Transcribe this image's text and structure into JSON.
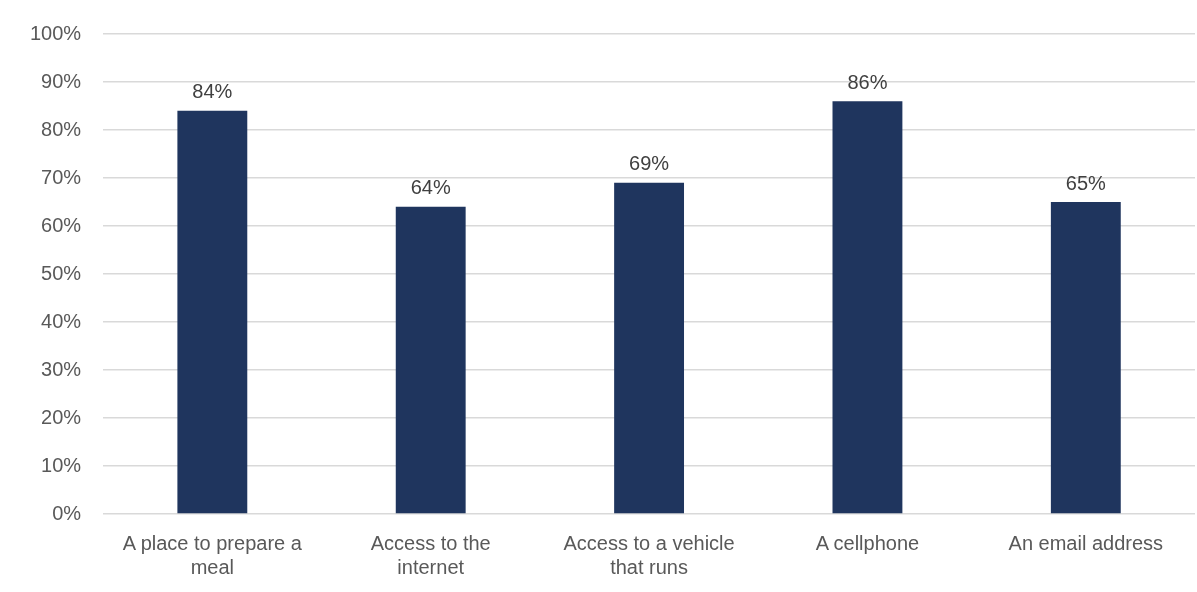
{
  "chart_data": {
    "type": "bar",
    "categories": [
      "A place to prepare a meal",
      "Access to the internet",
      "Access to a vehicle that runs",
      "A cellphone",
      "An email address"
    ],
    "values": [
      84,
      64,
      69,
      86,
      65
    ],
    "value_labels": [
      "84%",
      "64%",
      "69%",
      "86%",
      "65%"
    ],
    "color": "#1f355e",
    "ylim": [
      0,
      100
    ],
    "yticks": [
      {
        "value": 0,
        "label": "0%"
      },
      {
        "value": 10,
        "label": "10%"
      },
      {
        "value": 20,
        "label": "20%"
      },
      {
        "value": 30,
        "label": "30%"
      },
      {
        "value": 40,
        "label": "40%"
      },
      {
        "value": 50,
        "label": "50%"
      },
      {
        "value": 60,
        "label": "60%"
      },
      {
        "value": 70,
        "label": "70%"
      },
      {
        "value": 80,
        "label": "80%"
      },
      {
        "value": 90,
        "label": "90%"
      },
      {
        "value": 100,
        "label": "100%"
      }
    ],
    "grid": "y",
    "legend": false
  }
}
